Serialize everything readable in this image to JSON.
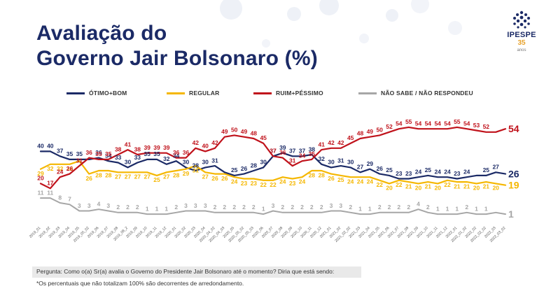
{
  "page": {
    "title_line1": "Avaliação do",
    "title_line2": "Governo Jair Bolsonaro (%)",
    "logo_text": "IPESPE",
    "logo_years": "35",
    "logo_anos": "anos",
    "question": "Pergunta: Como o(a) Sr(a) avalia o Governo do Presidente Jair Bolsonaro até o momento? Diria que está sendo:",
    "note": "*Os percentuais que não totalizam 100% são decorrentes de arredondamento."
  },
  "colors": {
    "title": "#1b2a66",
    "otimo": "#1b2a66",
    "regular": "#f5b700",
    "ruim": "#c0121b",
    "nao_sabe": "#a6a6a6"
  },
  "chart_data": {
    "type": "line",
    "x": [
      "2019_01",
      "2019_02",
      "2019_03",
      "2019_04",
      "2019_05",
      "2019_05_02",
      "2019_06",
      "2019_07",
      "2019_08",
      "2019_08_2",
      "2019_09",
      "2019_10",
      "2019_11",
      "2019_12",
      "2020_01",
      "2020_02",
      "2020_03",
      "2020_04",
      "2020_04_02",
      "2020_04_03",
      "2020_05",
      "2020_05_02",
      "2020_05_03",
      "2020_06",
      "2020_07",
      "2020_08",
      "2020_09",
      "2020_10",
      "2020_11",
      "2020_12",
      "2021_01",
      "2021_02",
      "2021_02_02",
      "2021_03",
      "2021_04",
      "2021_05",
      "2021_06",
      "2021_07",
      "2021_08",
      "2021_09",
      "2021_10",
      "2021_11",
      "2021_12",
      "2022_01",
      "2022_01_02",
      "2022_02",
      "2022_02_02",
      "2022_03",
      "2022_03_02"
    ],
    "legend_position": "top",
    "grid": false,
    "series": [
      {
        "name": "ÓTIMO+BOM",
        "color": "#1b2a66",
        "values": [
          40,
          40,
          37,
          35,
          35,
          35,
          36,
          34,
          33,
          30,
          33,
          35,
          35,
          32,
          34,
          30,
          28,
          30,
          31,
          27,
          25,
          26,
          28,
          30,
          37,
          39,
          37,
          37,
          38,
          32,
          30,
          31,
          30,
          27,
          29,
          26,
          25,
          23,
          23,
          24,
          25,
          24,
          24,
          23,
          24,
          25,
          25,
          27,
          26
        ]
      },
      {
        "name": "REGULAR",
        "color": "#f5b700",
        "values": [
          29,
          32,
          32,
          32,
          34,
          26,
          28,
          28,
          27,
          27,
          27,
          27,
          25,
          27,
          28,
          29,
          31,
          27,
          26,
          26,
          24,
          23,
          23,
          22,
          22,
          24,
          23,
          24,
          28,
          28,
          26,
          25,
          24,
          24,
          24,
          22,
          20,
          22,
          21,
          20,
          21,
          20,
          22,
          21,
          21,
          20,
          21,
          20,
          19
        ]
      },
      {
        "name": "RUIM+PÉSSIMO",
        "color": "#c0121b",
        "values": [
          20,
          17,
          24,
          26,
          31,
          36,
          35,
          35,
          38,
          41,
          38,
          39,
          39,
          39,
          36,
          36,
          42,
          40,
          42,
          49,
          50,
          49,
          48,
          45,
          37,
          36,
          31,
          34,
          35,
          41,
          42,
          42,
          45,
          48,
          49,
          50,
          52,
          54,
          55,
          54,
          54,
          54,
          54,
          55,
          54,
          53,
          52,
          52,
          54
        ]
      },
      {
        "name": "NÃO SABE / NÃO RESPONDEU",
        "color": "#a6a6a6",
        "values": [
          11,
          11,
          8,
          7,
          3,
          3,
          4,
          3,
          2,
          2,
          2,
          1,
          1,
          1,
          2,
          3,
          3,
          3,
          2,
          2,
          2,
          2,
          2,
          1,
          3,
          2,
          2,
          2,
          2,
          2,
          3,
          3,
          2,
          1,
          1,
          2,
          2,
          2,
          2,
          4,
          2,
          1,
          1,
          1,
          2,
          1,
          1,
          2,
          1
        ]
      }
    ],
    "visible_labels": {
      "ÓTIMO+BOM": [
        40,
        40,
        37,
        35,
        35,
        null,
        36,
        34,
        33,
        30,
        33,
        35,
        35,
        32,
        34,
        30,
        28,
        30,
        31,
        null,
        25,
        26,
        28,
        30,
        37,
        39,
        37,
        37,
        38,
        32,
        30,
        31,
        30,
        27,
        29,
        26,
        25,
        23,
        23,
        24,
        25,
        24,
        24,
        23,
        24,
        null,
        25,
        27,
        26
      ],
      "REGULAR": [
        29,
        32,
        32,
        32,
        null,
        26,
        28,
        28,
        27,
        27,
        27,
        27,
        25,
        27,
        28,
        29,
        31,
        27,
        26,
        26,
        24,
        23,
        23,
        22,
        22,
        24,
        23,
        24,
        28,
        28,
        26,
        25,
        24,
        24,
        24,
        22,
        20,
        22,
        21,
        20,
        21,
        20,
        22,
        21,
        21,
        20,
        21,
        20,
        19
      ],
      "RUIM+PÉSSIMO": [
        20,
        17,
        24,
        26,
        31,
        36,
        35,
        35,
        38,
        41,
        38,
        39,
        39,
        39,
        36,
        36,
        42,
        40,
        42,
        49,
        50,
        49,
        48,
        45,
        37,
        36,
        31,
        34,
        35,
        41,
        42,
        42,
        45,
        48,
        49,
        50,
        52,
        54,
        55,
        54,
        54,
        54,
        54,
        55,
        54,
        53,
        52,
        null,
        54
      ],
      "NÃO SABE / NÃO RESPONDEU": [
        11,
        11,
        8,
        7,
        3,
        3,
        4,
        3,
        2,
        2,
        2,
        1,
        1,
        1,
        2,
        3,
        3,
        3,
        2,
        2,
        2,
        2,
        2,
        1,
        3,
        2,
        2,
        2,
        2,
        2,
        3,
        3,
        2,
        1,
        1,
        2,
        2,
        2,
        2,
        4,
        2,
        1,
        1,
        1,
        2,
        1,
        1,
        null,
        1
      ]
    }
  }
}
